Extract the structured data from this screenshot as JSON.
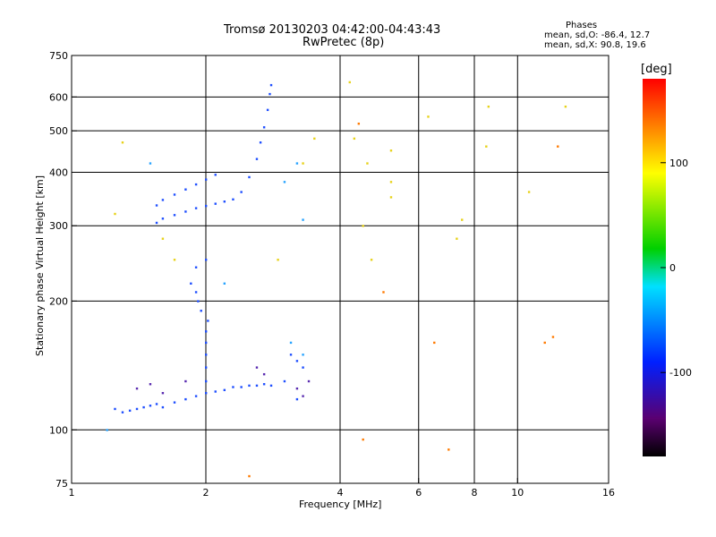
{
  "chart_data": {
    "type": "scatter",
    "title": "Tromsø 20130203 04:42:00-04:43:43",
    "subtitle": "RwPretec (8p)",
    "stats": {
      "header": "Phases",
      "line1": "mean, sd,O: -86.4, 12.7",
      "line2": "mean, sd,X:  90.8, 19.6"
    },
    "xlabel": "Frequency [MHz]",
    "ylabel": "Stationary phase Virtual Height [km]",
    "x_scale": "log2",
    "y_scale": "log",
    "xlim": [
      1,
      16
    ],
    "ylim": [
      75,
      750
    ],
    "xticks": [
      1,
      2,
      4,
      6,
      8,
      10,
      16
    ],
    "yticks": [
      75,
      100,
      200,
      300,
      400,
      500,
      600,
      750
    ],
    "x_gridlines": [
      2,
      4,
      6,
      8,
      10
    ],
    "y_gridlines": [
      100,
      200,
      300,
      400,
      500,
      600
    ],
    "colorbar": {
      "label": "[deg]",
      "ticks": [
        100,
        0,
        -100
      ],
      "range": [
        -180,
        180
      ],
      "colormap": "rainbow (black-purple-blue-cyan-green-yellow-red)"
    },
    "series": [
      {
        "points": [
          [
            1.25,
            112
          ],
          [
            1.3,
            110
          ],
          [
            1.35,
            111
          ],
          [
            1.4,
            112
          ],
          [
            1.45,
            113
          ],
          [
            1.5,
            114
          ],
          [
            1.55,
            115
          ],
          [
            1.6,
            113
          ],
          [
            1.7,
            116
          ],
          [
            1.8,
            118
          ],
          [
            1.9,
            120
          ],
          [
            2.0,
            122
          ],
          [
            2.1,
            123
          ],
          [
            2.2,
            124
          ],
          [
            2.3,
            126
          ],
          [
            2.4,
            126
          ],
          [
            2.5,
            127
          ],
          [
            2.6,
            127
          ],
          [
            2.7,
            128
          ],
          [
            2.8,
            127
          ],
          [
            2.0,
            130
          ],
          [
            2.0,
            140
          ],
          [
            2.0,
            150
          ],
          [
            2.0,
            160
          ],
          [
            2.0,
            170
          ],
          [
            2.02,
            180
          ],
          [
            1.95,
            190
          ],
          [
            1.92,
            200
          ],
          [
            1.9,
            210
          ],
          [
            1.85,
            220
          ],
          [
            1.9,
            240
          ],
          [
            2.0,
            250
          ],
          [
            1.55,
            305
          ],
          [
            1.6,
            312
          ],
          [
            1.7,
            318
          ],
          [
            1.8,
            324
          ],
          [
            1.9,
            330
          ],
          [
            2.0,
            334
          ],
          [
            2.1,
            338
          ],
          [
            2.2,
            342
          ],
          [
            2.3,
            346
          ],
          [
            1.55,
            335
          ],
          [
            1.6,
            345
          ],
          [
            1.7,
            355
          ],
          [
            1.8,
            365
          ],
          [
            1.9,
            375
          ],
          [
            2.0,
            385
          ],
          [
            2.1,
            395
          ],
          [
            2.4,
            360
          ],
          [
            2.5,
            390
          ],
          [
            2.6,
            430
          ],
          [
            2.65,
            470
          ],
          [
            2.7,
            510
          ],
          [
            2.75,
            560
          ],
          [
            2.78,
            610
          ],
          [
            2.8,
            640
          ],
          [
            3.1,
            150
          ],
          [
            3.2,
            145
          ],
          [
            3.3,
            140
          ],
          [
            3.0,
            130
          ],
          [
            3.2,
            118
          ]
        ]
      },
      {
        "points": [
          [
            1.4,
            125
          ],
          [
            1.5,
            128
          ],
          [
            1.6,
            122
          ],
          [
            1.8,
            130
          ],
          [
            2.6,
            140
          ],
          [
            2.7,
            135
          ],
          [
            3.2,
            125
          ],
          [
            3.3,
            120
          ],
          [
            3.4,
            130
          ]
        ]
      },
      {
        "points": [
          [
            1.3,
            470
          ],
          [
            1.25,
            320
          ],
          [
            1.6,
            280
          ],
          [
            1.7,
            250
          ],
          [
            2.9,
            250
          ],
          [
            3.3,
            420
          ],
          [
            3.5,
            480
          ],
          [
            4.6,
            420
          ],
          [
            4.3,
            480
          ],
          [
            5.2,
            450
          ],
          [
            5.2,
            380
          ],
          [
            5.2,
            350
          ],
          [
            4.5,
            300
          ],
          [
            4.7,
            250
          ],
          [
            7.5,
            310
          ],
          [
            7.3,
            280
          ],
          [
            8.6,
            570
          ],
          [
            8.5,
            460
          ],
          [
            12.8,
            570
          ],
          [
            10.6,
            360
          ],
          [
            4.2,
            650
          ],
          [
            6.3,
            540
          ]
        ]
      },
      {
        "points": [
          [
            4.4,
            520
          ],
          [
            5.0,
            210
          ],
          [
            6.5,
            160
          ],
          [
            12.3,
            460
          ],
          [
            11.5,
            160
          ],
          [
            12.0,
            165
          ],
          [
            2.5,
            78
          ],
          [
            4.5,
            95
          ],
          [
            7.0,
            90
          ]
        ]
      },
      {
        "points": [
          [
            3.3,
            310
          ],
          [
            3.0,
            380
          ],
          [
            3.2,
            420
          ],
          [
            3.1,
            160
          ],
          [
            3.3,
            150
          ],
          [
            1.2,
            100
          ],
          [
            2.2,
            220
          ],
          [
            1.5,
            420
          ]
        ]
      }
    ]
  }
}
